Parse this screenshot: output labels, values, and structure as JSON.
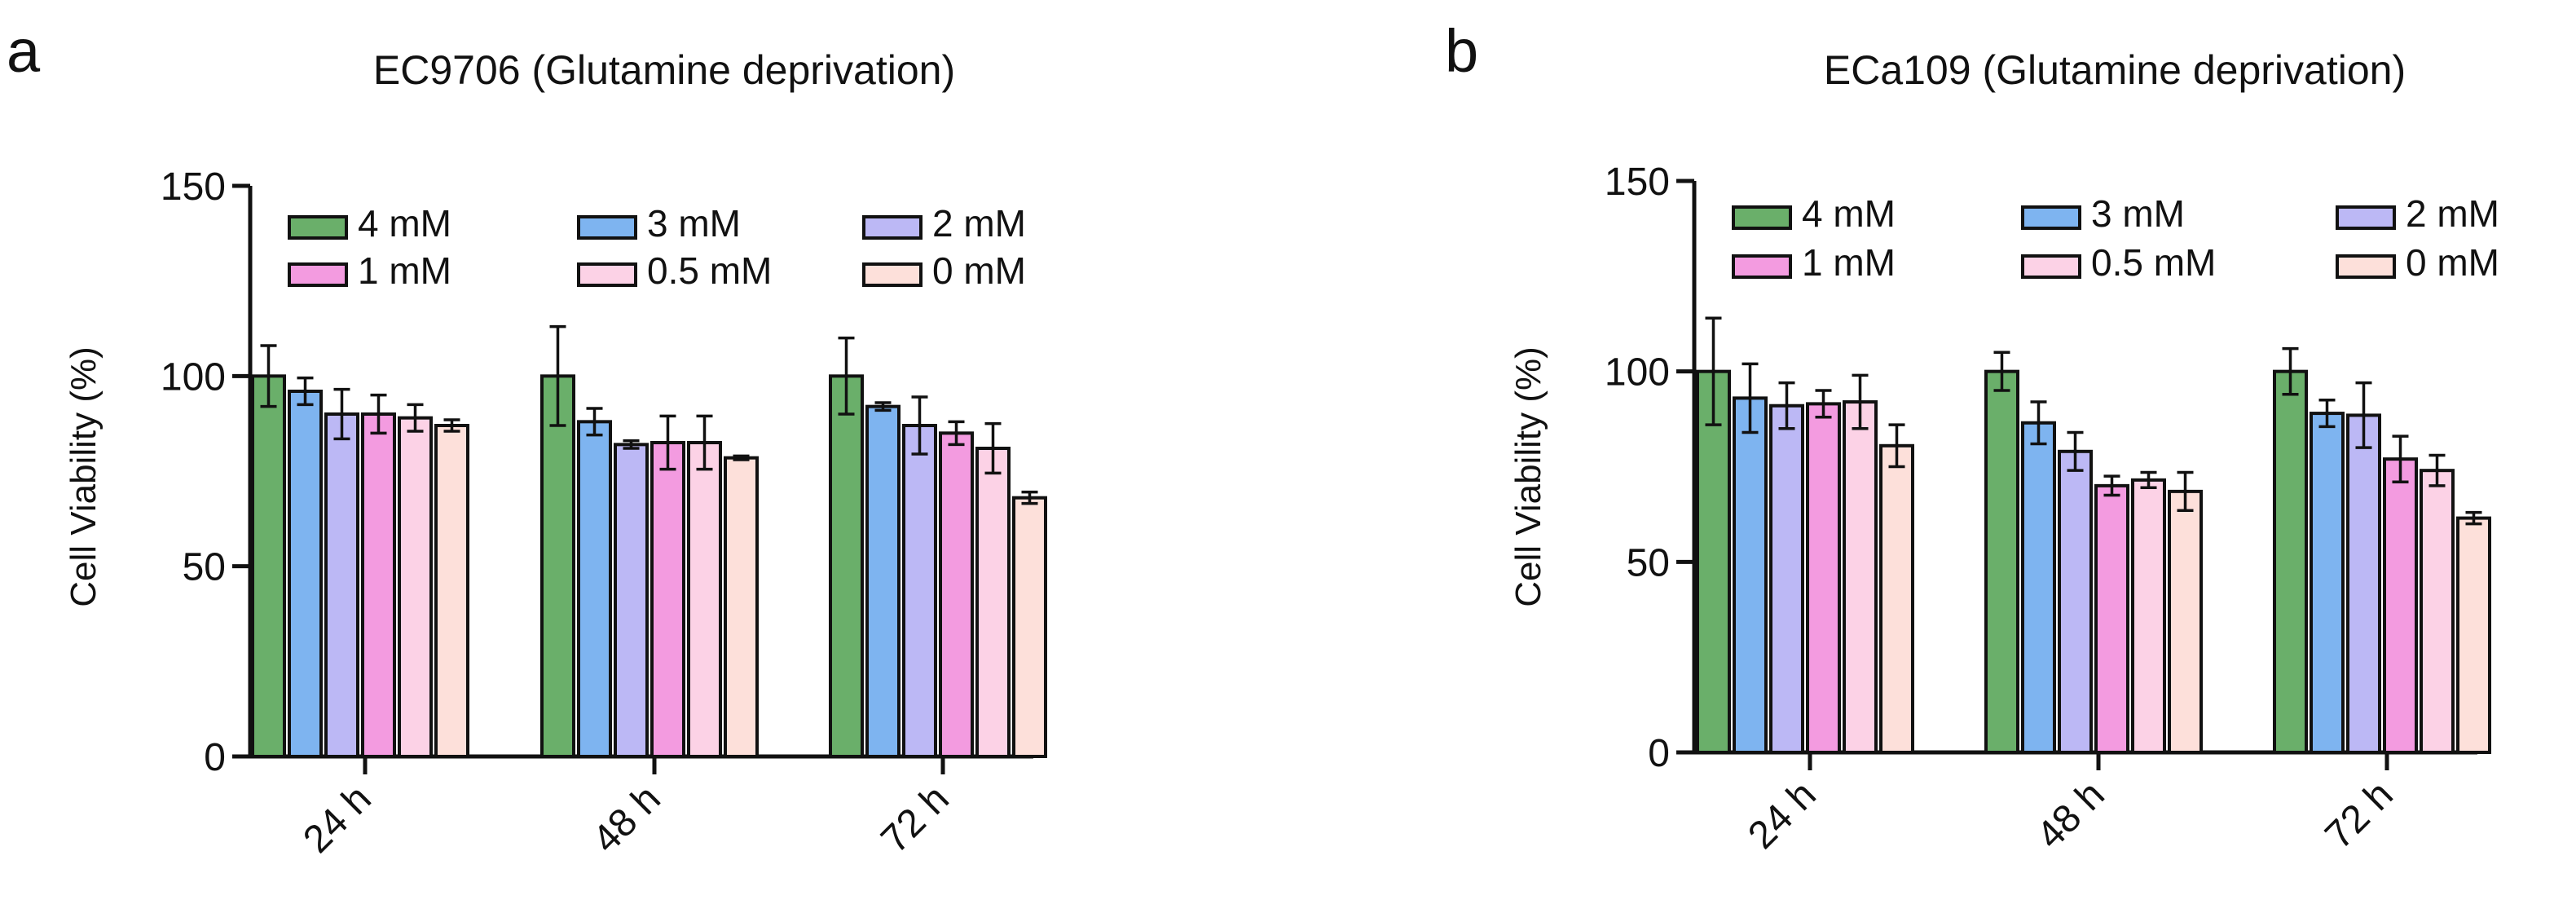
{
  "panels": [
    {
      "letter": "a",
      "chart_data": {
        "type": "bar",
        "title": "EC9706 (Glutamine deprivation)",
        "xlabel": "",
        "ylabel": "Cell Viability (%)",
        "ylim": [
          0,
          150
        ],
        "yticks": [
          0,
          50,
          100,
          150
        ],
        "categories": [
          "24 h",
          "48 h",
          "72 h"
        ],
        "series": [
          {
            "name": "4 mM",
            "color": "#6aaf6a",
            "values": [
              100,
              100,
              100
            ],
            "errors": [
              8,
              13,
              10
            ]
          },
          {
            "name": "3 mM",
            "color": "#7eb4f0",
            "values": [
              96,
              88,
              92
            ],
            "errors": [
              3.5,
              3.5,
              1
            ]
          },
          {
            "name": "2 mM",
            "color": "#bcb8f5",
            "values": [
              90,
              82,
              87
            ],
            "errors": [
              6.5,
              1,
              7.5
            ]
          },
          {
            "name": "1 mM",
            "color": "#f39be0",
            "values": [
              90,
              82.5,
              85
            ],
            "errors": [
              5,
              7,
              3
            ]
          },
          {
            "name": "0.5 mM",
            "color": "#fcd2e6",
            "values": [
              89,
              82.5,
              81
            ],
            "errors": [
              3.5,
              7,
              6.5
            ]
          },
          {
            "name": "0 mM",
            "color": "#fde0da",
            "values": [
              87,
              78.5,
              68
            ],
            "errors": [
              1.5,
              0.5,
              1.5
            ]
          }
        ],
        "legend_position": "top"
      }
    },
    {
      "letter": "b",
      "chart_data": {
        "type": "bar",
        "title": "ECa109 (Glutamine deprivation)",
        "xlabel": "",
        "ylabel": "Cell Viability (%)",
        "ylim": [
          0,
          150
        ],
        "yticks": [
          0,
          50,
          100,
          150
        ],
        "categories": [
          "24 h",
          "48 h",
          "72 h"
        ],
        "series": [
          {
            "name": "4 mM",
            "color": "#6aaf6a",
            "values": [
              100,
              100,
              100
            ],
            "errors": [
              14,
              5,
              6
            ]
          },
          {
            "name": "3 mM",
            "color": "#7eb4f0",
            "values": [
              93,
              86.5,
              89
            ],
            "errors": [
              9,
              5.5,
              3.5
            ]
          },
          {
            "name": "2 mM",
            "color": "#bcb8f5",
            "values": [
              91,
              79,
              88.5
            ],
            "errors": [
              6,
              5,
              8.5
            ]
          },
          {
            "name": "1 mM",
            "color": "#f39be0",
            "values": [
              91.5,
              70,
              77
            ],
            "errors": [
              3.5,
              2.5,
              6
            ]
          },
          {
            "name": "0.5 mM",
            "color": "#fcd2e6",
            "values": [
              92,
              71.5,
              74
            ],
            "errors": [
              7,
              2,
              4
            ]
          },
          {
            "name": "0 mM",
            "color": "#fde0da",
            "values": [
              80.5,
              68.5,
              61.5
            ],
            "errors": [
              5.5,
              5,
              1.5
            ]
          }
        ],
        "legend_position": "top"
      }
    }
  ]
}
